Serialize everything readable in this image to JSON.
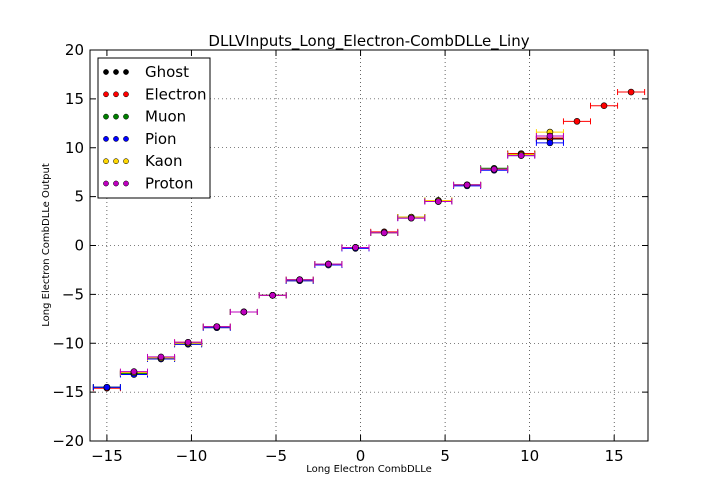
{
  "chart_data": {
    "type": "scatter",
    "title": "DLLVInputs_Long_Electron-CombDLLe_Liny",
    "xlabel": "Long Electron CombDLLe",
    "ylabel": "Long Electron CombDLLe Output",
    "xlim": [
      -16,
      17
    ],
    "ylim": [
      -20,
      20
    ],
    "xticks": [
      "−15",
      "−10",
      "−5",
      "0",
      "5",
      "10",
      "15"
    ],
    "xtick_values": [
      -15,
      -10,
      -5,
      0,
      5,
      10,
      15
    ],
    "yticks": [
      "−20",
      "−15",
      "−10",
      "−5",
      "0",
      "5",
      "10",
      "15",
      "20"
    ],
    "ytick_values": [
      -20,
      -15,
      -10,
      -5,
      0,
      5,
      10,
      15,
      20
    ],
    "grid": true,
    "legend_position": "upper-left",
    "x_bin_half_width": 0.8,
    "series": [
      {
        "name": "Ghost",
        "color": "#000000",
        "points": [
          [
            -15.0,
            -14.5
          ],
          [
            -13.4,
            -13.1
          ],
          [
            -11.8,
            -11.6
          ],
          [
            -10.2,
            -10.1
          ],
          [
            -8.5,
            -8.4
          ],
          [
            -6.9,
            -6.8
          ],
          [
            -5.2,
            -5.1
          ],
          [
            -3.6,
            -3.6
          ],
          [
            -1.9,
            -1.9
          ],
          [
            -0.3,
            -0.2
          ],
          [
            1.4,
            1.3
          ],
          [
            3.0,
            2.9
          ],
          [
            4.6,
            4.6
          ],
          [
            6.3,
            6.2
          ],
          [
            7.9,
            7.8
          ],
          [
            9.5,
            9.4
          ],
          [
            11.2,
            10.9
          ]
        ]
      },
      {
        "name": "Electron",
        "color": "#ff0000",
        "points": [
          [
            -15.0,
            -14.6
          ],
          [
            -13.4,
            -13.0
          ],
          [
            -11.8,
            -11.5
          ],
          [
            -10.2,
            -9.9
          ],
          [
            -8.5,
            -8.3
          ],
          [
            -6.9,
            -6.8
          ],
          [
            -5.2,
            -5.1
          ],
          [
            -3.6,
            -3.5
          ],
          [
            -1.9,
            -1.9
          ],
          [
            -0.3,
            -0.2
          ],
          [
            1.4,
            1.4
          ],
          [
            3.0,
            2.9
          ],
          [
            4.6,
            4.6
          ],
          [
            6.3,
            6.2
          ],
          [
            7.9,
            7.8
          ],
          [
            9.5,
            9.4
          ],
          [
            11.2,
            11.0
          ],
          [
            12.8,
            12.7
          ],
          [
            14.4,
            14.3
          ],
          [
            16.0,
            15.7
          ]
        ]
      },
      {
        "name": "Muon",
        "color": "#008000",
        "points": [
          [
            -15.0,
            -14.5
          ],
          [
            -13.4,
            -13.1
          ],
          [
            -11.8,
            -11.5
          ],
          [
            -10.2,
            -10.0
          ],
          [
            -8.5,
            -8.3
          ],
          [
            -6.9,
            -6.8
          ],
          [
            -5.2,
            -5.1
          ],
          [
            -3.6,
            -3.5
          ],
          [
            -1.9,
            -1.9
          ],
          [
            -0.3,
            -0.2
          ],
          [
            1.4,
            1.3
          ],
          [
            3.0,
            2.9
          ],
          [
            4.6,
            4.6
          ],
          [
            6.3,
            6.2
          ],
          [
            7.9,
            7.9
          ],
          [
            9.5,
            9.3
          ]
        ]
      },
      {
        "name": "Pion",
        "color": "#0000ff",
        "points": [
          [
            -15.0,
            -14.5
          ],
          [
            -13.4,
            -13.2
          ],
          [
            -11.8,
            -11.6
          ],
          [
            -10.2,
            -10.1
          ],
          [
            -8.5,
            -8.4
          ],
          [
            -6.9,
            -6.8
          ],
          [
            -5.2,
            -5.1
          ],
          [
            -3.6,
            -3.6
          ],
          [
            -1.9,
            -2.0
          ],
          [
            -0.3,
            -0.3
          ],
          [
            1.4,
            1.3
          ],
          [
            3.0,
            2.8
          ],
          [
            4.6,
            4.5
          ],
          [
            6.3,
            6.1
          ],
          [
            7.9,
            7.7
          ],
          [
            9.5,
            9.2
          ],
          [
            11.2,
            10.5
          ]
        ]
      },
      {
        "name": "Kaon",
        "color": "#ffd700",
        "points": [
          [
            -13.4,
            -13.0
          ],
          [
            -11.8,
            -11.5
          ],
          [
            -10.2,
            -10.0
          ],
          [
            -8.5,
            -8.3
          ],
          [
            -6.9,
            -6.8
          ],
          [
            -5.2,
            -5.1
          ],
          [
            -3.6,
            -3.5
          ],
          [
            -1.9,
            -1.9
          ],
          [
            -0.3,
            -0.2
          ],
          [
            1.4,
            1.3
          ],
          [
            3.0,
            2.9
          ],
          [
            4.6,
            4.6
          ],
          [
            6.3,
            6.2
          ],
          [
            7.9,
            7.8
          ],
          [
            9.5,
            9.3
          ],
          [
            11.2,
            11.6
          ]
        ]
      },
      {
        "name": "Proton",
        "color": "#bf00bf",
        "points": [
          [
            -13.4,
            -12.9
          ],
          [
            -11.8,
            -11.4
          ],
          [
            -10.2,
            -9.9
          ],
          [
            -8.5,
            -8.3
          ],
          [
            -6.9,
            -6.8
          ],
          [
            -5.2,
            -5.1
          ],
          [
            -3.6,
            -3.5
          ],
          [
            -1.9,
            -1.9
          ],
          [
            -0.3,
            -0.2
          ],
          [
            1.4,
            1.3
          ],
          [
            3.0,
            2.8
          ],
          [
            4.6,
            4.5
          ],
          [
            6.3,
            6.2
          ],
          [
            7.9,
            7.8
          ],
          [
            9.5,
            9.2
          ],
          [
            11.2,
            11.2
          ]
        ]
      }
    ]
  }
}
